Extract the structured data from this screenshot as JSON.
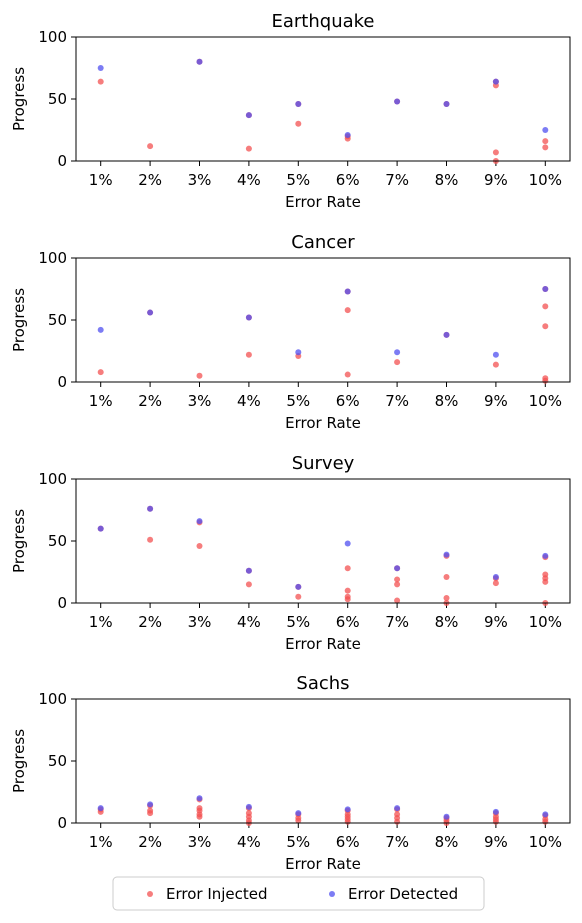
{
  "colors": {
    "injected": "#f35252",
    "detected": "#5050f0"
  },
  "legend": {
    "placement": "bottom-center",
    "items": [
      {
        "key": "injected",
        "label": "Error Injected"
      },
      {
        "key": "detected",
        "label": "Error Detected"
      }
    ]
  },
  "chart_data": [
    {
      "type": "scatter",
      "title": "Earthquake",
      "xlabel": "Error Rate",
      "ylabel": "Progress",
      "ylim": [
        0,
        100
      ],
      "yticks": [
        0,
        50,
        100
      ],
      "categories": [
        "1%",
        "2%",
        "3%",
        "4%",
        "5%",
        "6%",
        "7%",
        "8%",
        "9%",
        "10%"
      ],
      "series": [
        {
          "name": "Error Injected",
          "key": "injected",
          "points": [
            [
              0,
              64
            ],
            [
              1,
              12
            ],
            [
              2,
              80
            ],
            [
              3,
              37
            ],
            [
              3,
              10
            ],
            [
              4,
              46
            ],
            [
              4,
              30
            ],
            [
              5,
              20
            ],
            [
              5,
              18
            ],
            [
              6,
              48
            ],
            [
              7,
              46
            ],
            [
              8,
              64
            ],
            [
              8,
              61
            ],
            [
              8,
              7
            ],
            [
              8,
              0
            ],
            [
              9,
              16
            ],
            [
              9,
              11
            ]
          ]
        },
        {
          "name": "Error Detected",
          "key": "detected",
          "points": [
            [
              0,
              75
            ],
            [
              2,
              80
            ],
            [
              3,
              37
            ],
            [
              4,
              46
            ],
            [
              5,
              21
            ],
            [
              6,
              48
            ],
            [
              7,
              46
            ],
            [
              8,
              64
            ],
            [
              9,
              25
            ]
          ]
        }
      ]
    },
    {
      "type": "scatter",
      "title": "Cancer",
      "xlabel": "Error Rate",
      "ylabel": "Progress",
      "ylim": [
        0,
        100
      ],
      "yticks": [
        0,
        50,
        100
      ],
      "categories": [
        "1%",
        "2%",
        "3%",
        "4%",
        "5%",
        "6%",
        "7%",
        "8%",
        "9%",
        "10%"
      ],
      "series": [
        {
          "name": "Error Injected",
          "key": "injected",
          "points": [
            [
              0,
              8
            ],
            [
              1,
              56
            ],
            [
              2,
              5
            ],
            [
              3,
              52
            ],
            [
              3,
              22
            ],
            [
              4,
              21
            ],
            [
              5,
              73
            ],
            [
              5,
              58
            ],
            [
              5,
              6
            ],
            [
              6,
              16
            ],
            [
              7,
              38
            ],
            [
              8,
              14
            ],
            [
              9,
              75
            ],
            [
              9,
              61
            ],
            [
              9,
              45
            ],
            [
              9,
              3
            ],
            [
              9,
              1
            ]
          ]
        },
        {
          "name": "Error Detected",
          "key": "detected",
          "points": [
            [
              0,
              42
            ],
            [
              1,
              56
            ],
            [
              3,
              52
            ],
            [
              4,
              24
            ],
            [
              5,
              73
            ],
            [
              6,
              24
            ],
            [
              7,
              38
            ],
            [
              8,
              22
            ],
            [
              9,
              75
            ]
          ]
        }
      ]
    },
    {
      "type": "scatter",
      "title": "Survey",
      "xlabel": "Error Rate",
      "ylabel": "Progress",
      "ylim": [
        0,
        100
      ],
      "yticks": [
        0,
        50,
        100
      ],
      "categories": [
        "1%",
        "2%",
        "3%",
        "4%",
        "5%",
        "6%",
        "7%",
        "8%",
        "9%",
        "10%"
      ],
      "series": [
        {
          "name": "Error Injected",
          "key": "injected",
          "points": [
            [
              0,
              60
            ],
            [
              1,
              76
            ],
            [
              1,
              51
            ],
            [
              2,
              65
            ],
            [
              2,
              46
            ],
            [
              3,
              26
            ],
            [
              3,
              15
            ],
            [
              4,
              13
            ],
            [
              4,
              5
            ],
            [
              5,
              28
            ],
            [
              5,
              10
            ],
            [
              5,
              5
            ],
            [
              5,
              3
            ],
            [
              6,
              28
            ],
            [
              6,
              19
            ],
            [
              6,
              15
            ],
            [
              6,
              2
            ],
            [
              7,
              38
            ],
            [
              7,
              21
            ],
            [
              7,
              4
            ],
            [
              7,
              0
            ],
            [
              8,
              20
            ],
            [
              8,
              16
            ],
            [
              9,
              37
            ],
            [
              9,
              23
            ],
            [
              9,
              20
            ],
            [
              9,
              17
            ],
            [
              9,
              0
            ]
          ]
        },
        {
          "name": "Error Detected",
          "key": "detected",
          "points": [
            [
              0,
              60
            ],
            [
              1,
              76
            ],
            [
              2,
              66
            ],
            [
              3,
              26
            ],
            [
              4,
              13
            ],
            [
              5,
              48
            ],
            [
              6,
              28
            ],
            [
              7,
              39
            ],
            [
              8,
              21
            ],
            [
              9,
              38
            ]
          ]
        }
      ]
    },
    {
      "type": "scatter",
      "title": "Sachs",
      "xlabel": "Error Rate",
      "ylabel": "Progress",
      "ylim": [
        0,
        100
      ],
      "yticks": [
        0,
        50,
        100
      ],
      "categories": [
        "1%",
        "2%",
        "3%",
        "4%",
        "5%",
        "6%",
        "7%",
        "8%",
        "9%",
        "10%"
      ],
      "series": [
        {
          "name": "Error Injected",
          "key": "injected",
          "points": [
            [
              0,
              11
            ],
            [
              0,
              9
            ],
            [
              1,
              14
            ],
            [
              1,
              10
            ],
            [
              1,
              8
            ],
            [
              2,
              19
            ],
            [
              2,
              12
            ],
            [
              2,
              10
            ],
            [
              2,
              7
            ],
            [
              2,
              5
            ],
            [
              3,
              12
            ],
            [
              3,
              8
            ],
            [
              3,
              5
            ],
            [
              3,
              2
            ],
            [
              3,
              0
            ],
            [
              4,
              7
            ],
            [
              4,
              4
            ],
            [
              4,
              2
            ],
            [
              5,
              10
            ],
            [
              5,
              7
            ],
            [
              5,
              5
            ],
            [
              5,
              3
            ],
            [
              5,
              1
            ],
            [
              6,
              11
            ],
            [
              6,
              7
            ],
            [
              6,
              4
            ],
            [
              6,
              1
            ],
            [
              7,
              4
            ],
            [
              7,
              2
            ],
            [
              7,
              0
            ],
            [
              8,
              8
            ],
            [
              8,
              5
            ],
            [
              8,
              3
            ],
            [
              8,
              1
            ],
            [
              9,
              6
            ],
            [
              9,
              3
            ],
            [
              9,
              1
            ]
          ]
        },
        {
          "name": "Error Detected",
          "key": "detected",
          "points": [
            [
              0,
              12
            ],
            [
              1,
              15
            ],
            [
              2,
              20
            ],
            [
              3,
              13
            ],
            [
              4,
              8
            ],
            [
              5,
              11
            ],
            [
              6,
              12
            ],
            [
              7,
              5
            ],
            [
              8,
              9
            ],
            [
              9,
              7
            ]
          ]
        }
      ]
    }
  ]
}
